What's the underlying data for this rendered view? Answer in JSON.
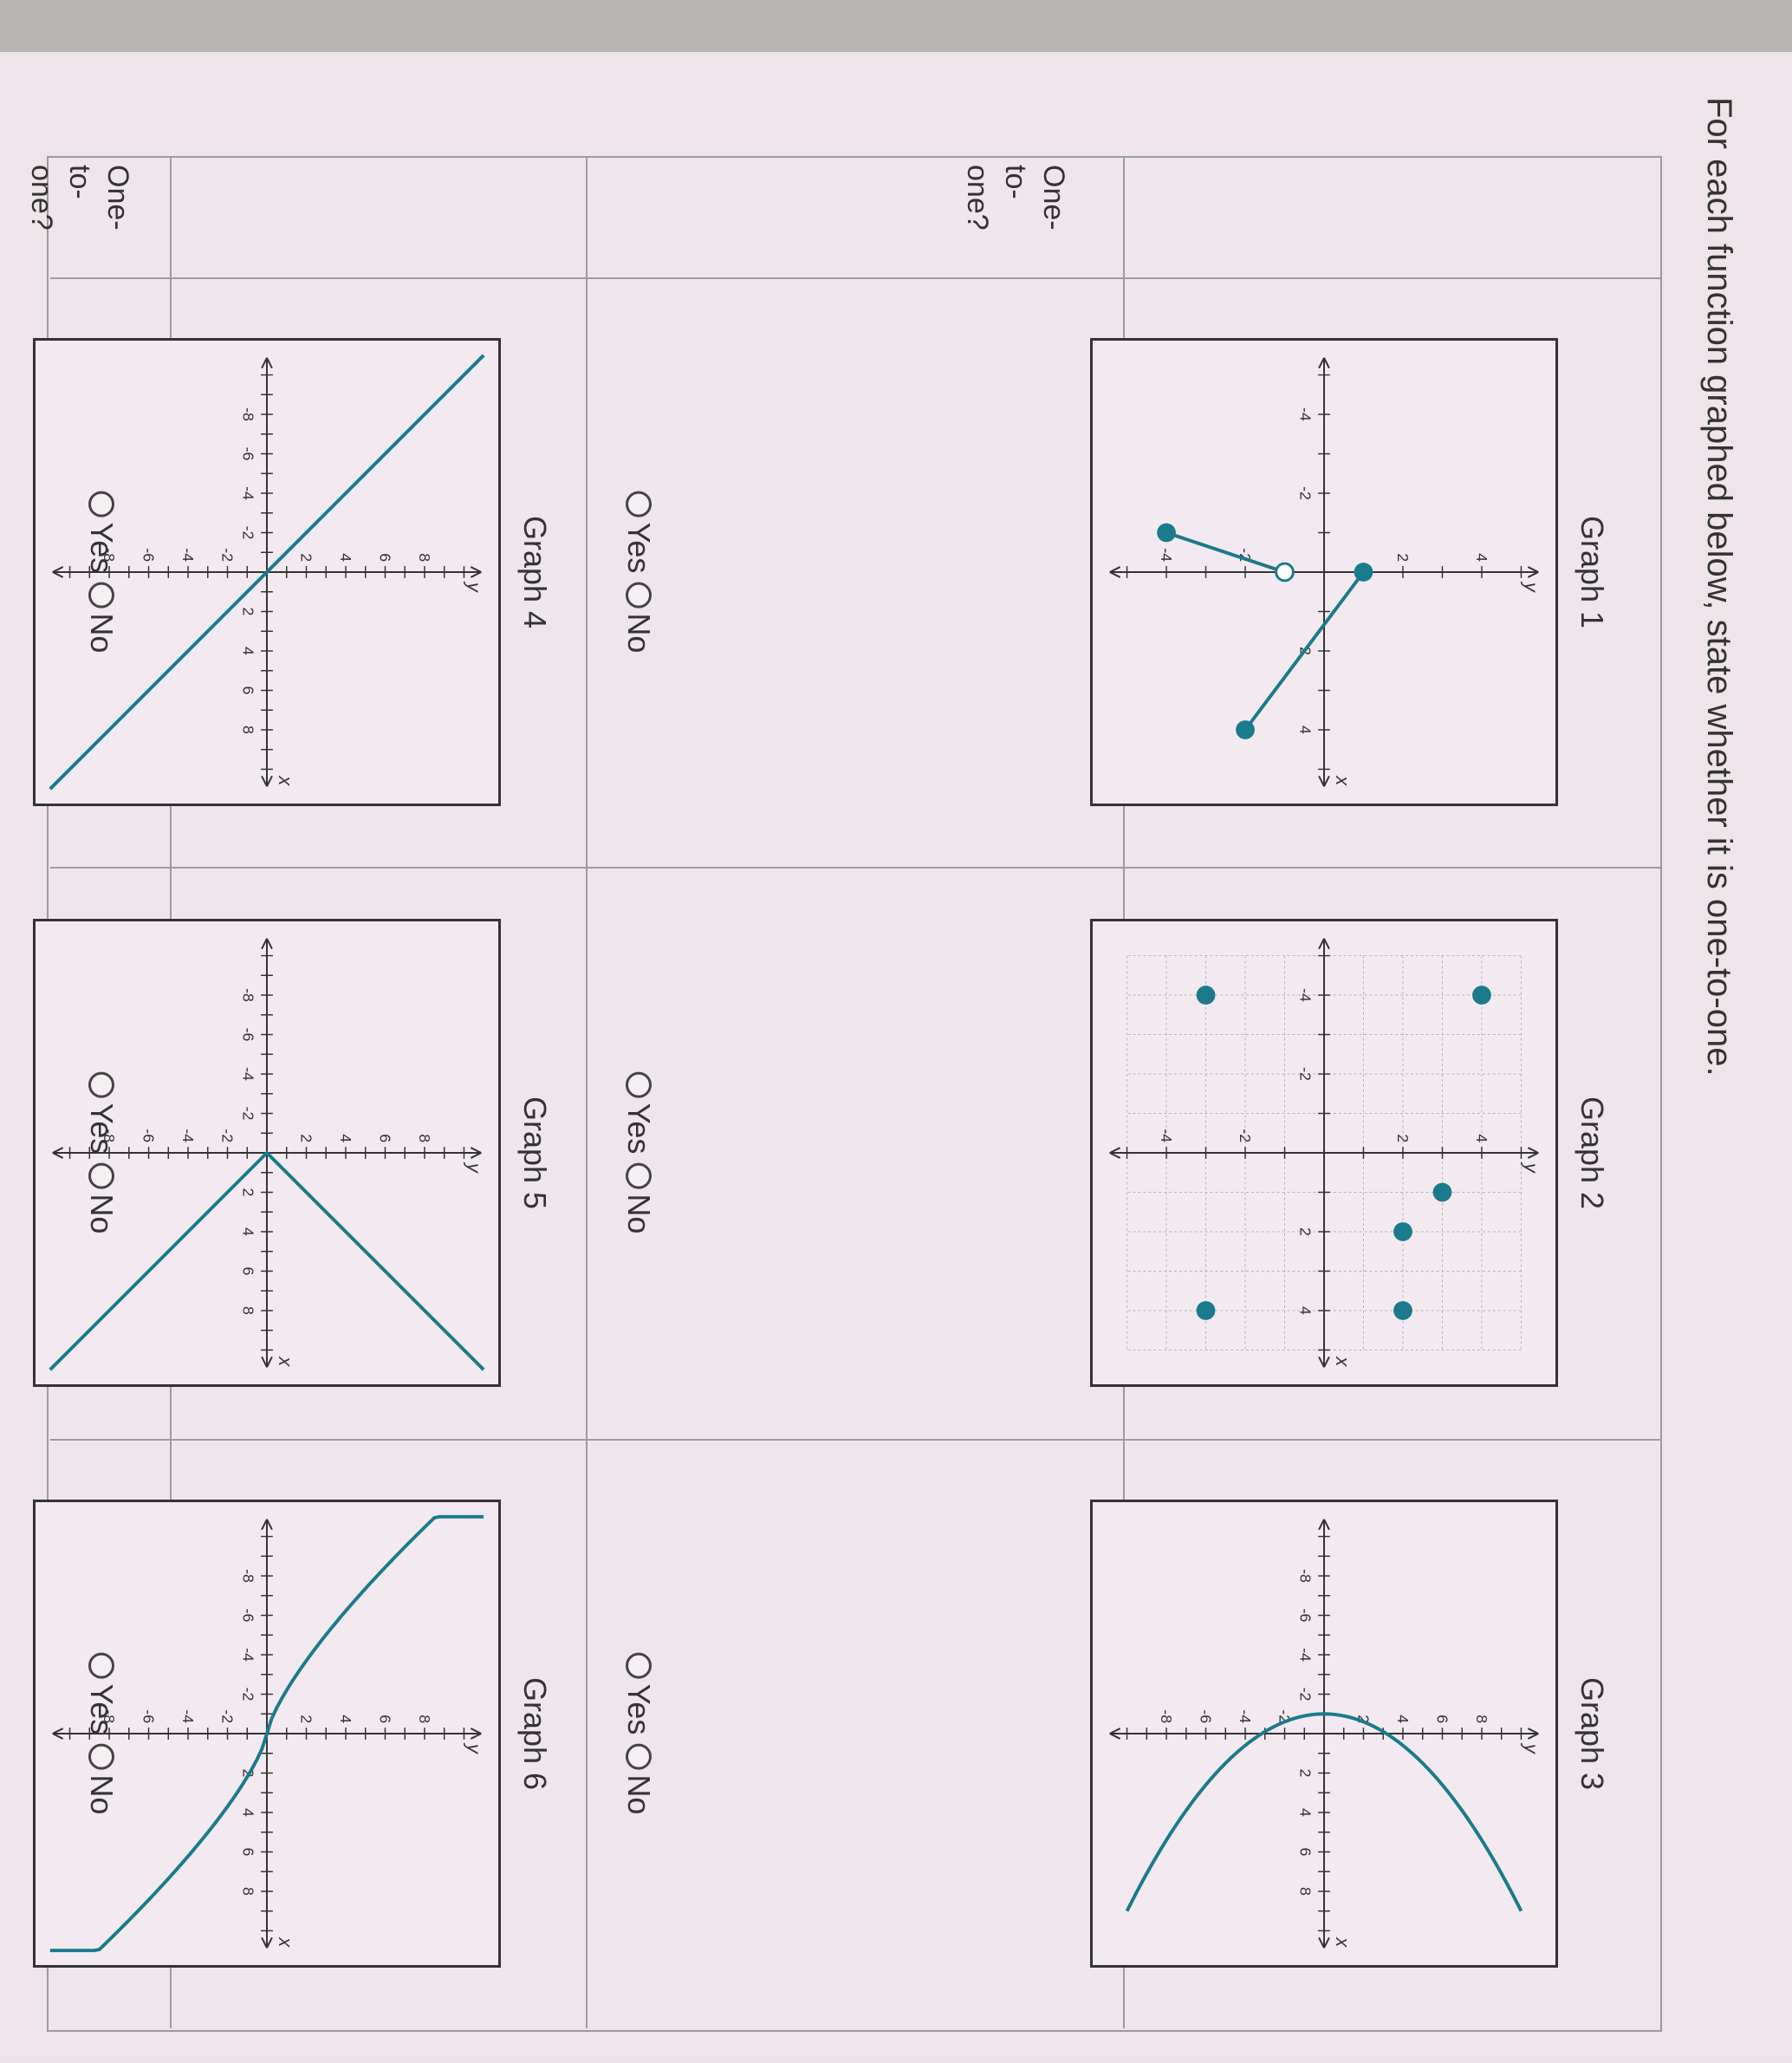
{
  "prompt": "For each function graphed below, state whether it is one-to-one.",
  "row_label": "One-to-one?",
  "row_label_lines": [
    "One-",
    "to-",
    "one?"
  ],
  "options": {
    "yes": "Yes",
    "no": "No"
  },
  "graphs": [
    {
      "title": "Graph 1",
      "kind": "piecewise"
    },
    {
      "title": "Graph 2",
      "kind": "points"
    },
    {
      "title": "Graph 3",
      "kind": "parabola-sideways"
    },
    {
      "title": "Graph 4",
      "kind": "line"
    },
    {
      "title": "Graph 5",
      "kind": "absolute-value"
    },
    {
      "title": "Graph 6",
      "kind": "cubic-like"
    }
  ],
  "tick_labels_large": [
    "-8",
    "-6",
    "-4",
    "-2",
    "2",
    "4",
    "6",
    "8"
  ],
  "tick_labels_small": [
    "-4",
    "-2",
    "2",
    "4"
  ],
  "axis_labels": {
    "x": "x",
    "y": "y"
  },
  "colors": {
    "curve": "#1b7a8c",
    "axis": "#333333",
    "border": "#9c9c9c"
  }
}
